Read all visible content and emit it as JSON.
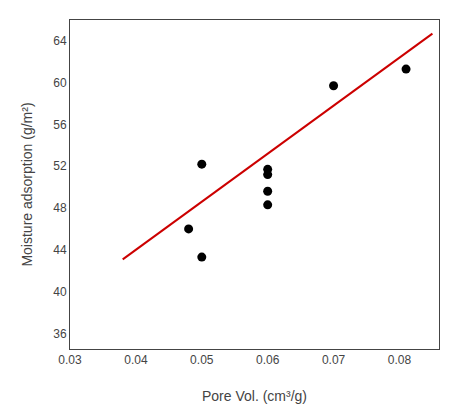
{
  "chart_data": {
    "type": "scatter",
    "xlabel": "Pore Vol. (cm³/g)",
    "ylabel": "Moisture adsorption (g/m²)",
    "series": [
      {
        "type": "line",
        "color": "#cc0000",
        "x": [
          0.038,
          0.085
        ],
        "values": [
          43.08,
          64.7
        ]
      },
      {
        "type": "scatter",
        "color": "#000000",
        "marker": "circle",
        "x": [
          0.048,
          0.05,
          0.05,
          0.06,
          0.06,
          0.06,
          0.06,
          0.07,
          0.081
        ],
        "values": [
          46.0,
          52.2,
          43.3,
          51.7,
          51.2,
          49.6,
          48.3,
          59.7,
          61.3
        ]
      }
    ],
    "xlim": [
      0.03,
      0.086
    ],
    "ylim": [
      34.5,
      66
    ],
    "xticks": [
      0.03,
      0.04,
      0.05,
      0.06,
      0.07,
      0.08
    ],
    "yticks": [
      36,
      40,
      44,
      48,
      52,
      56,
      60,
      64
    ],
    "grid": false
  }
}
